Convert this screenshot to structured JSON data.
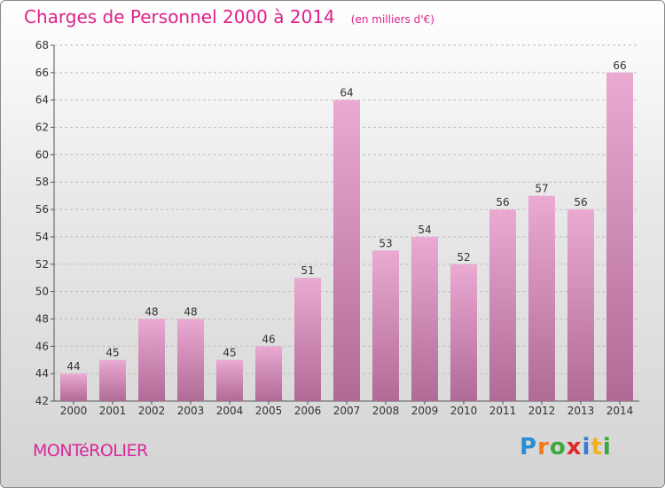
{
  "header": {
    "title": "Charges de Personnel 2000 à 2014",
    "subtitle": "(en milliers d'€)"
  },
  "footer": {
    "commune": "MONTéROLIER",
    "logo": [
      "P",
      "r",
      "o",
      "x",
      "i",
      "t",
      "i"
    ],
    "logo_colors": [
      "#2a8ed6",
      "#f07a1a",
      "#3aa83a",
      "#e02a2a",
      "#3a7ad6",
      "#f0b21a",
      "#3aa83a"
    ]
  },
  "colors": {
    "bar_top": "#eaaad2",
    "bar_bottom": "#b06a96",
    "accent": "#e0208a"
  },
  "chart_data": {
    "type": "bar",
    "title": "Charges de Personnel 2000 à 2014",
    "subtitle": "(en milliers d'€)",
    "categories": [
      "2000",
      "2001",
      "2002",
      "2003",
      "2004",
      "2005",
      "2006",
      "2007",
      "2008",
      "2009",
      "2010",
      "2011",
      "2012",
      "2013",
      "2014"
    ],
    "values": [
      44,
      45,
      48,
      48,
      45,
      46,
      51,
      64,
      53,
      54,
      52,
      56,
      57,
      56,
      66
    ],
    "ylim": [
      42,
      68
    ],
    "yticks": [
      42,
      44,
      46,
      48,
      50,
      52,
      54,
      56,
      58,
      60,
      62,
      64,
      66,
      68
    ],
    "grid": true
  }
}
